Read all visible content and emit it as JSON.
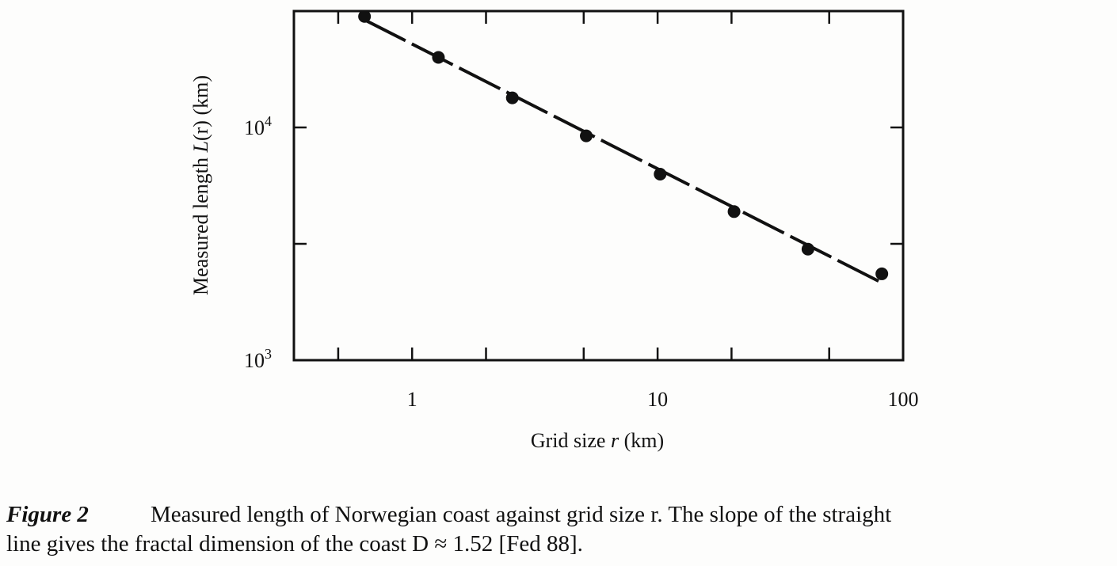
{
  "chart_data": {
    "type": "scatter",
    "xscale": "log",
    "yscale": "log",
    "xlim": [
      0.33,
      100
    ],
    "ylim": [
      1000,
      31623
    ],
    "xlabel_pre": "Grid size ",
    "xlabel_var": "r",
    "xlabel_post": " (km)",
    "ylabel_pre": "Measured length ",
    "ylabel_var": "L",
    "ylabel_post": "(r) (km)",
    "x_tick_labels": [
      {
        "value": 1,
        "text": "1"
      },
      {
        "value": 10,
        "text": "10"
      },
      {
        "value": 100,
        "text": "100"
      }
    ],
    "y_tick_labels": [
      {
        "value": 1000,
        "base": "10",
        "exp": "3"
      },
      {
        "value": 10000,
        "base": "10",
        "exp": "4"
      }
    ],
    "x_minor_ticks": [
      0.5,
      2,
      5,
      20,
      50
    ],
    "y_minor_ticks": [
      3162
    ],
    "x": [
      0.64,
      1.28,
      2.56,
      5.12,
      10.24,
      20.48,
      40.96,
      81.92
    ],
    "y": [
      30000,
      20000,
      13400,
      9200,
      6300,
      4350,
      3000,
      2350
    ],
    "fit_line": {
      "x": [
        0.64,
        81.92
      ],
      "y": [
        29000,
        2150
      ]
    },
    "grid": false
  },
  "caption": {
    "label": "Figure 2",
    "line1": "Measured length of Norwegian coast against grid size r. The slope of the straight",
    "line2": "line gives the fractal dimension of the coast D ≈ 1.52 [Fed 88]."
  }
}
